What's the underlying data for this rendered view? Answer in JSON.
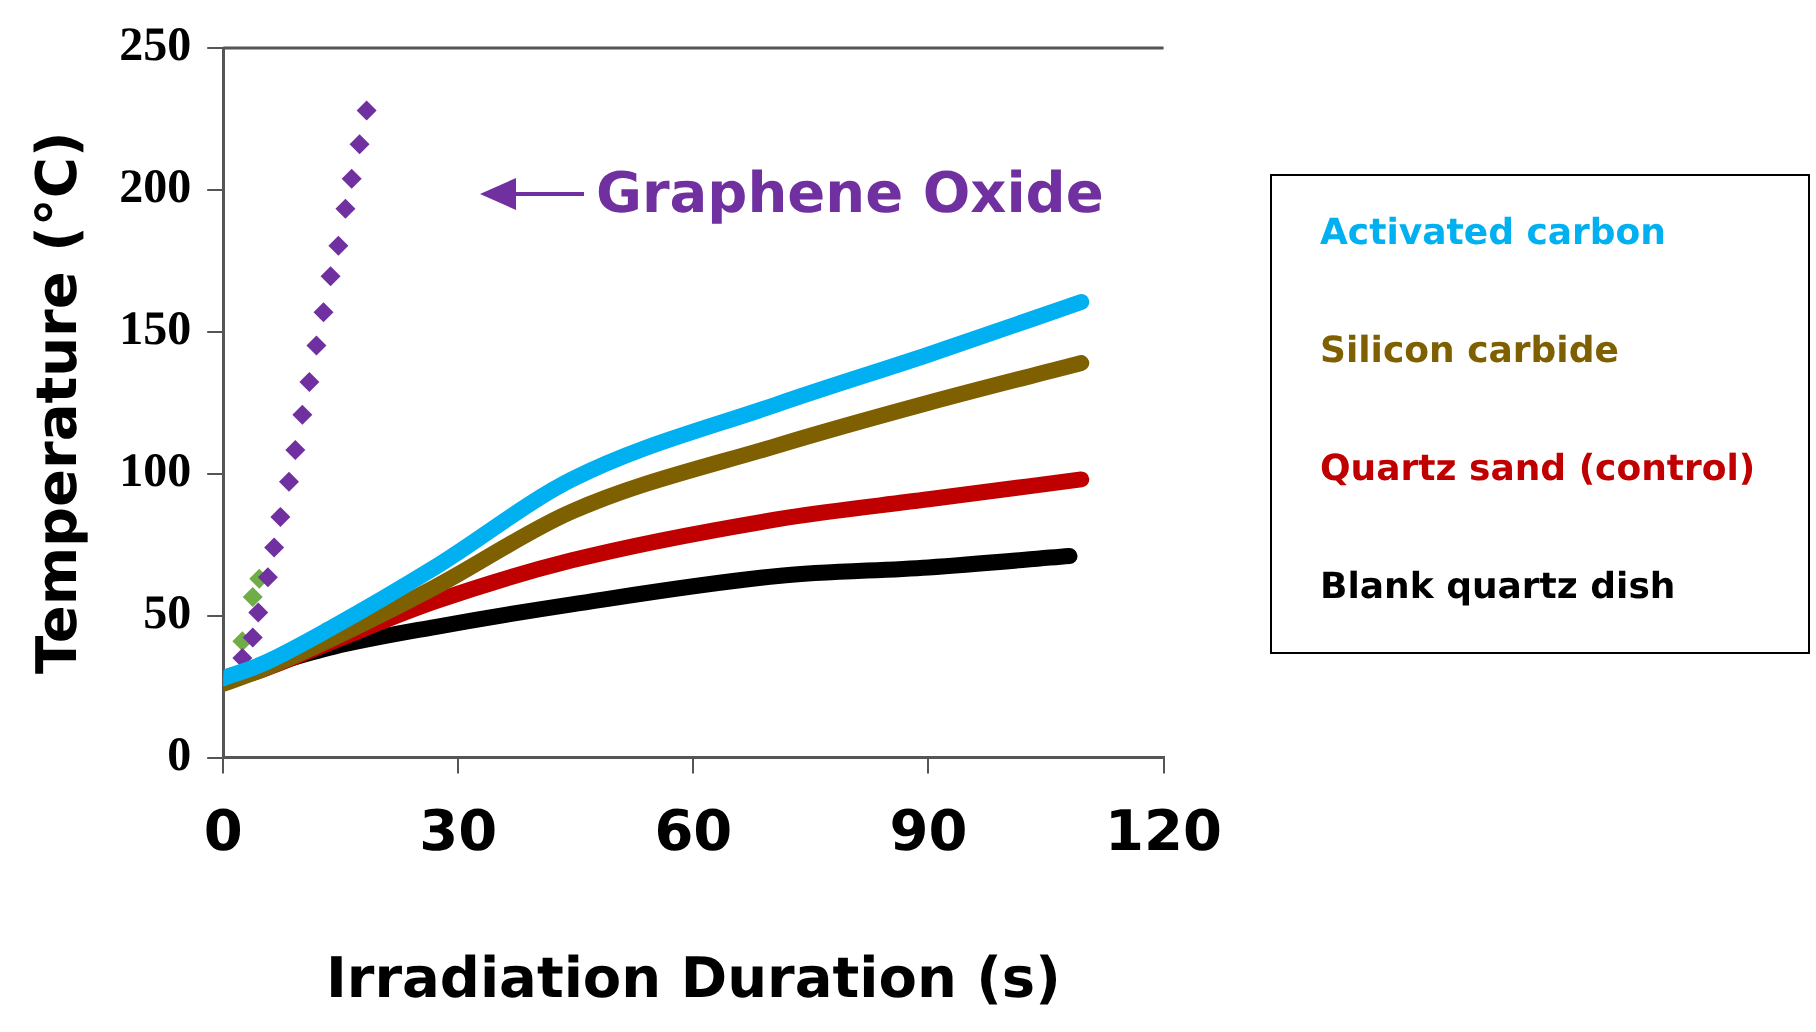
{
  "chart_data": {
    "type": "line",
    "xlabel": "Irradiation Duration (s)",
    "ylabel": "Temperature (°C)",
    "xlim": [
      0,
      120
    ],
    "xticks": [
      0,
      30,
      60,
      90,
      120
    ],
    "ylim": [
      0,
      250
    ],
    "yticks": [
      0,
      50,
      100,
      150,
      200,
      250
    ],
    "grid": false,
    "legend": "right",
    "line_style": "solid",
    "annotations": [
      "Graphene Oxide"
    ],
    "series": [
      {
        "name": "Activated carbon",
        "color": "#00b0f0",
        "marker": "none",
        "x": [
          0,
          5,
          14,
          27,
          44.5,
          70.8,
          90,
          109.5
        ],
        "values": [
          28,
          33,
          46,
          67,
          98,
          124.6,
          142,
          160.5
        ]
      },
      {
        "name": "Silicon carbide",
        "color": "#7f6000",
        "marker": "none",
        "x": [
          0,
          5,
          14,
          27,
          44.5,
          70.8,
          90,
          109.5
        ],
        "values": [
          26,
          31,
          42,
          60,
          86.7,
          110,
          125,
          139
        ]
      },
      {
        "name": "Quartz sand (control)",
        "color": "#c00000",
        "marker": "none",
        "x": [
          0,
          5,
          14,
          27,
          44.5,
          70.8,
          90,
          109.5
        ],
        "values": [
          27,
          31,
          41,
          55,
          69.5,
          84,
          91,
          98
        ]
      },
      {
        "name": "Blank quartz dish",
        "color": "#000000",
        "marker": "none",
        "x": [
          0,
          5,
          14,
          27,
          44.5,
          70.8,
          90,
          108
        ],
        "values": [
          28,
          32,
          39,
          46,
          54,
          64,
          67,
          71
        ]
      },
      {
        "color": "#7030a0",
        "type": "scatter",
        "marker": "diamond",
        "x": [
          2.45,
          3.77,
          4.47,
          5.7,
          6.5,
          7.3,
          8.4,
          9.2,
          10.1,
          11,
          11.9,
          12.8,
          13.7,
          14.7,
          15.6,
          16.4,
          17.4,
          18.3
        ],
        "values": [
          35.1,
          42.3,
          51.1,
          63.5,
          74,
          84.8,
          97.2,
          108.4,
          120.8,
          132.3,
          145.2,
          156.9,
          169.6,
          180.3,
          193.4,
          203.9,
          216.1,
          228
        ]
      },
      {
        "color": "#70ad47",
        "type": "scatter",
        "marker": "diamond",
        "x": [
          2.45,
          3.77,
          4.6
        ],
        "values": [
          41,
          56.6,
          63
        ]
      }
    ]
  }
}
